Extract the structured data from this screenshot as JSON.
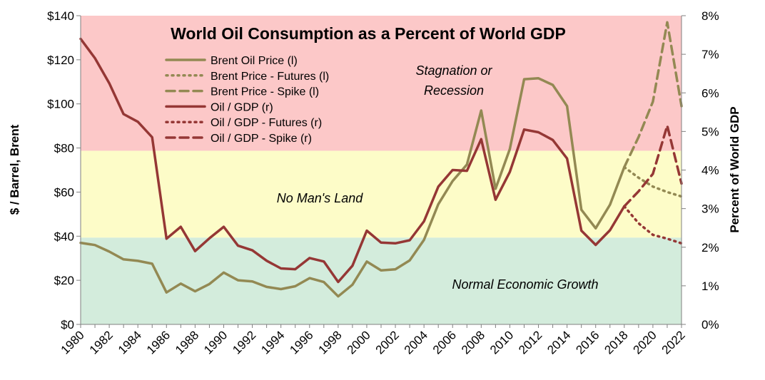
{
  "chart_data": {
    "type": "line",
    "title": "World Oil Consumption as a Percent of World GDP",
    "ylabel_left": "$ / Barrel, Brent",
    "ylabel_right": "Percent of World GDP",
    "xlim": [
      1980,
      2022
    ],
    "ylim_left": [
      0,
      140
    ],
    "ylim_right": [
      0,
      8
    ],
    "x_ticks": [
      "1980",
      "1982",
      "1984",
      "1986",
      "1988",
      "1990",
      "1992",
      "1994",
      "1996",
      "1998",
      "2000",
      "2002",
      "2004",
      "2006",
      "2008",
      "2010",
      "2012",
      "2014",
      "2016",
      "2018",
      "2020",
      "2022"
    ],
    "y_ticks_left": [
      "$0",
      "$20",
      "$40",
      "$60",
      "$80",
      "$100",
      "$120",
      "$140"
    ],
    "y_ticks_right": [
      "0%",
      "1%",
      "2%",
      "3%",
      "4%",
      "5%",
      "6%",
      "7%",
      "8%"
    ],
    "zones": [
      {
        "label": "Normal Economic Growth",
        "from": 0,
        "to": 2.25,
        "color": "#d3ecdc"
      },
      {
        "label": "No Man's Land",
        "from": 2.25,
        "to": 4.5,
        "color": "#fdfcc8"
      },
      {
        "label": "Stagnation or Recession",
        "from": 4.5,
        "to": 8,
        "color": "#fcc8c8"
      }
    ],
    "series": [
      {
        "name": "Brent Oil Price (l)",
        "axis": "left",
        "style": "solid",
        "color": "#938953",
        "x": [
          1980,
          1981,
          1982,
          1983,
          1984,
          1985,
          1986,
          1987,
          1988,
          1989,
          1990,
          1991,
          1992,
          1993,
          1994,
          1995,
          1996,
          1997,
          1998,
          1999,
          2000,
          2001,
          2002,
          2003,
          2004,
          2005,
          2006,
          2007,
          2008,
          2009,
          2010,
          2011,
          2012,
          2013,
          2014,
          2015,
          2016,
          2017,
          2018
        ],
        "y": [
          37,
          36,
          33,
          29.5,
          28.8,
          27.5,
          14.5,
          18.5,
          15,
          18.3,
          23.5,
          20,
          19.5,
          17,
          16,
          17.3,
          21,
          19.2,
          12.7,
          18,
          28.5,
          24.5,
          25,
          29,
          38.3,
          54.5,
          65,
          72.5,
          97,
          61.5,
          79.5,
          111.2,
          111.6,
          108.6,
          99,
          52,
          43.6,
          54.3,
          71.3
        ]
      },
      {
        "name": "Brent Price - Futures (l)",
        "axis": "left",
        "style": "dotted",
        "color": "#938953",
        "x": [
          2018,
          2019,
          2020,
          2021,
          2022
        ],
        "y": [
          71.3,
          66.5,
          62.5,
          60,
          58
        ]
      },
      {
        "name": "Brent Price - Spike (l)",
        "axis": "left",
        "style": "dashed",
        "color": "#938953",
        "x": [
          2018,
          2019,
          2020,
          2021,
          2022
        ],
        "y": [
          71.3,
          85,
          101,
          137,
          99
        ]
      },
      {
        "name": "Oil / GDP (r)",
        "axis": "right",
        "style": "solid",
        "color": "#953735",
        "x": [
          1980,
          1981,
          1982,
          1983,
          1984,
          1985,
          1986,
          1987,
          1988,
          1989,
          1990,
          1991,
          1992,
          1993,
          1994,
          1995,
          1996,
          1997,
          1998,
          1999,
          2000,
          2001,
          2002,
          2003,
          2004,
          2005,
          2006,
          2007,
          2008,
          2009,
          2010,
          2011,
          2012,
          2013,
          2014,
          2015,
          2016,
          2017,
          2018
        ],
        "y": [
          7.4,
          6.9,
          6.25,
          5.45,
          5.25,
          4.85,
          2.22,
          2.53,
          1.9,
          2.23,
          2.53,
          2.04,
          1.92,
          1.65,
          1.45,
          1.43,
          1.72,
          1.63,
          1.1,
          1.52,
          2.43,
          2.12,
          2.1,
          2.18,
          2.67,
          3.57,
          4.0,
          3.98,
          4.8,
          3.23,
          3.95,
          5.05,
          4.98,
          4.78,
          4.3,
          2.43,
          2.06,
          2.44,
          3.06
        ]
      },
      {
        "name": "Oil / GDP - Futures (r)",
        "axis": "right",
        "style": "dotted",
        "color": "#953735",
        "x": [
          2018,
          2019,
          2020,
          2021,
          2022
        ],
        "y": [
          3.06,
          2.62,
          2.32,
          2.22,
          2.1
        ]
      },
      {
        "name": "Oil / GDP - Spike (r)",
        "axis": "right",
        "style": "dashed",
        "color": "#953735",
        "x": [
          2018,
          2019,
          2020,
          2021,
          2022
        ],
        "y": [
          3.06,
          3.45,
          3.9,
          5.15,
          3.65
        ]
      }
    ],
    "legend_position": "top-left",
    "grid": false
  }
}
